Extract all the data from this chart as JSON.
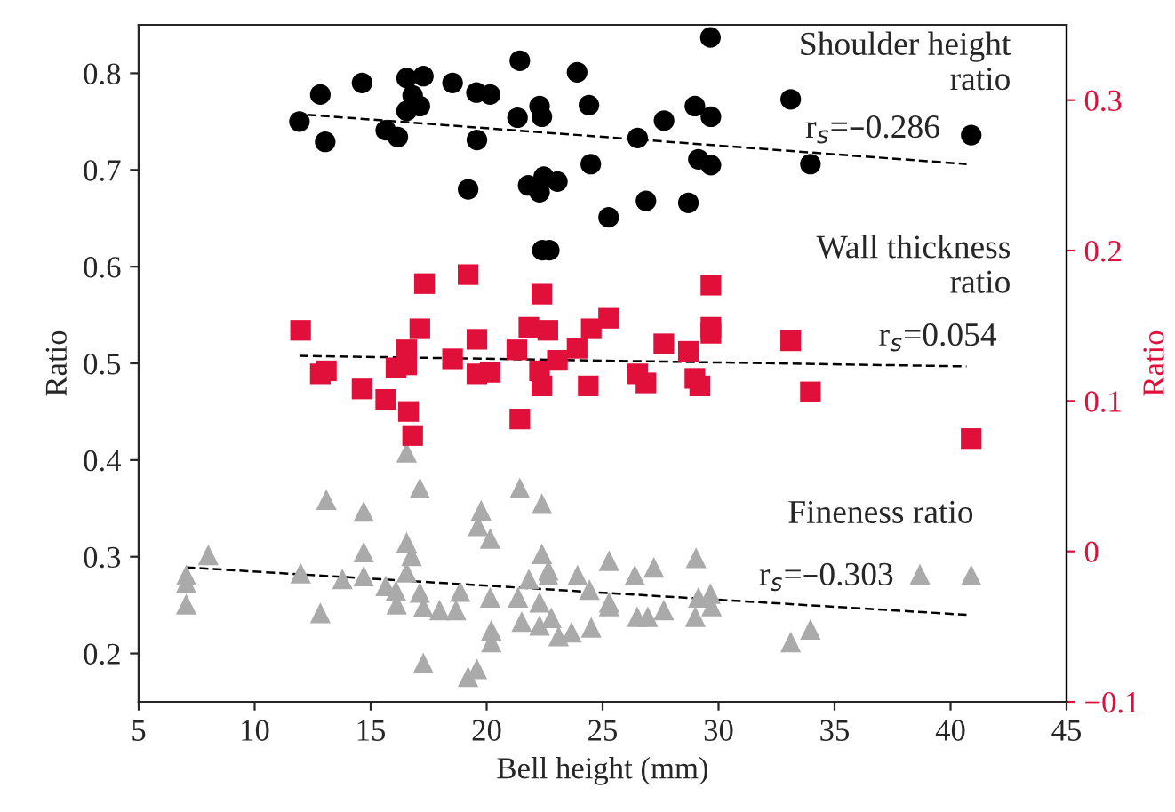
{
  "chart_data": {
    "type": "scatter",
    "xlabel": "Bell height (mm)",
    "ylabel": "Ratio",
    "y2label": "Ratio",
    "xlim": [
      5,
      45
    ],
    "xticks": [
      5,
      10,
      15,
      20,
      25,
      30,
      35,
      40,
      45
    ],
    "ylim": [
      0.15,
      0.85
    ],
    "yticks": [
      0.2,
      0.3,
      0.4,
      0.5,
      0.6,
      0.7,
      0.8
    ],
    "y2lim": [
      -0.1,
      0.35
    ],
    "y2ticks": [
      {
        "value": -0.1,
        "label": "−0.1"
      },
      0,
      0.1,
      0.2,
      0.3
    ],
    "legend": false,
    "grid": false,
    "annotations": [
      "Shoulder height\nratio",
      "r$_{s}$=–0.286",
      "Wall thickness\nratio",
      "r$_{s}$=0.054",
      "Fineness ratio",
      "r$_{s}$=–0.303"
    ],
    "series": [
      {
        "marker": "circle",
        "color": "#000000",
        "x": [
          29.65,
          12.83,
          14.63,
          16.55,
          17.27,
          18.53,
          19.56,
          20.15,
          21.43,
          23.9,
          11.93,
          13.04,
          15.65,
          16.17,
          16.55,
          16.81,
          17.12,
          19.58,
          21.33,
          22.28,
          22.38,
          24.41,
          26.51,
          27.65,
          28.98,
          29.67,
          33.11,
          40.89,
          33.96,
          29.13,
          29.67,
          24.49,
          19.2,
          21.79,
          22.28,
          22.46,
          23.05,
          25.26,
          26.87,
          28.7,
          22.4,
          22.7
        ],
        "values": [
          0.837,
          0.778,
          0.79,
          0.795,
          0.797,
          0.79,
          0.78,
          0.778,
          0.813,
          0.801,
          0.75,
          0.729,
          0.741,
          0.734,
          0.761,
          0.777,
          0.766,
          0.731,
          0.754,
          0.766,
          0.755,
          0.767,
          0.733,
          0.751,
          0.766,
          0.755,
          0.773,
          0.736,
          0.706,
          0.711,
          0.705,
          0.706,
          0.68,
          0.684,
          0.677,
          0.693,
          0.688,
          0.651,
          0.668,
          0.666,
          0.617,
          0.617
        ]
      },
      {
        "marker": "square",
        "axis": "y2",
        "color": "#e0103a",
        "x": [
          11.98,
          12.83,
          13.09,
          14.63,
          15.65,
          16.09,
          16.55,
          16.55,
          16.63,
          16.81,
          17.12,
          17.32,
          18.53,
          19.2,
          19.58,
          19.58,
          20.15,
          21.3,
          21.43,
          21.82,
          22.38,
          22.28,
          22.38,
          22.64,
          23.05,
          23.9,
          24.38,
          24.51,
          25.26,
          26.51,
          26.87,
          27.64,
          28.7,
          28.98,
          29.19,
          29.67,
          29.67,
          29.67,
          33.11,
          33.96,
          40.89
        ],
        "values": [
          0.147,
          0.118,
          0.12,
          0.108,
          0.101,
          0.122,
          0.134,
          0.124,
          0.093,
          0.077,
          0.148,
          0.178,
          0.128,
          0.184,
          0.141,
          0.118,
          0.119,
          0.134,
          0.088,
          0.149,
          0.171,
          0.12,
          0.11,
          0.147,
          0.127,
          0.135,
          0.11,
          0.148,
          0.155,
          0.118,
          0.112,
          0.138,
          0.133,
          0.115,
          0.11,
          0.177,
          0.149,
          0.145,
          0.14,
          0.106,
          0.075
        ]
      },
      {
        "marker": "triangle",
        "color": "#aaaaaa",
        "x": [
          7.05,
          7.05,
          7.05,
          8.0,
          11.98,
          12.83,
          13.09,
          13.78,
          14.7,
          14.7,
          14.7,
          15.65,
          16.09,
          16.12,
          16.55,
          16.55,
          16.55,
          16.76,
          17.12,
          17.12,
          17.27,
          17.27,
          17.97,
          18.68,
          18.86,
          19.2,
          19.58,
          19.76,
          19.63,
          20.15,
          20.15,
          20.2,
          20.2,
          21.35,
          21.43,
          21.51,
          21.82,
          22.28,
          22.28,
          22.38,
          22.38,
          22.66,
          22.66,
          22.79,
          23.1,
          23.66,
          23.92,
          24.43,
          24.51,
          25.28,
          25.28,
          25.28,
          26.39,
          26.49,
          26.95,
          27.21,
          27.64,
          29.03,
          29.0,
          29.13,
          29.65,
          29.7,
          33.11,
          33.96,
          38.68,
          40.89
        ],
        "values": [
          0.281,
          0.273,
          0.251,
          0.302,
          0.283,
          0.242,
          0.359,
          0.277,
          0.347,
          0.305,
          0.28,
          0.27,
          0.265,
          0.251,
          0.408,
          0.315,
          0.284,
          0.301,
          0.371,
          0.263,
          0.248,
          0.19,
          0.245,
          0.245,
          0.264,
          0.176,
          0.184,
          0.348,
          0.332,
          0.319,
          0.258,
          0.224,
          0.212,
          0.258,
          0.371,
          0.233,
          0.277,
          0.253,
          0.229,
          0.355,
          0.303,
          0.286,
          0.281,
          0.237,
          0.218,
          0.222,
          0.281,
          0.266,
          0.227,
          0.296,
          0.253,
          0.249,
          0.281,
          0.238,
          0.238,
          0.289,
          0.245,
          0.299,
          0.238,
          0.258,
          0.262,
          0.249,
          0.212,
          0.225,
          0.282,
          0.281
        ]
      },
      {
        "type": "line",
        "line_style": "dashed",
        "color": "#000000",
        "x": [
          12.27,
          40.69
        ],
        "values": [
          0.757,
          0.706
        ]
      },
      {
        "type": "line",
        "line_style": "dashed",
        "axis": "y2",
        "color": "#000000",
        "x": [
          11.93,
          40.69
        ],
        "values": [
          0.13,
          0.123
        ]
      },
      {
        "type": "line",
        "line_style": "dashed",
        "color": "#000000",
        "x": [
          7.05,
          40.69
        ],
        "values": [
          0.289,
          0.24
        ]
      }
    ]
  }
}
